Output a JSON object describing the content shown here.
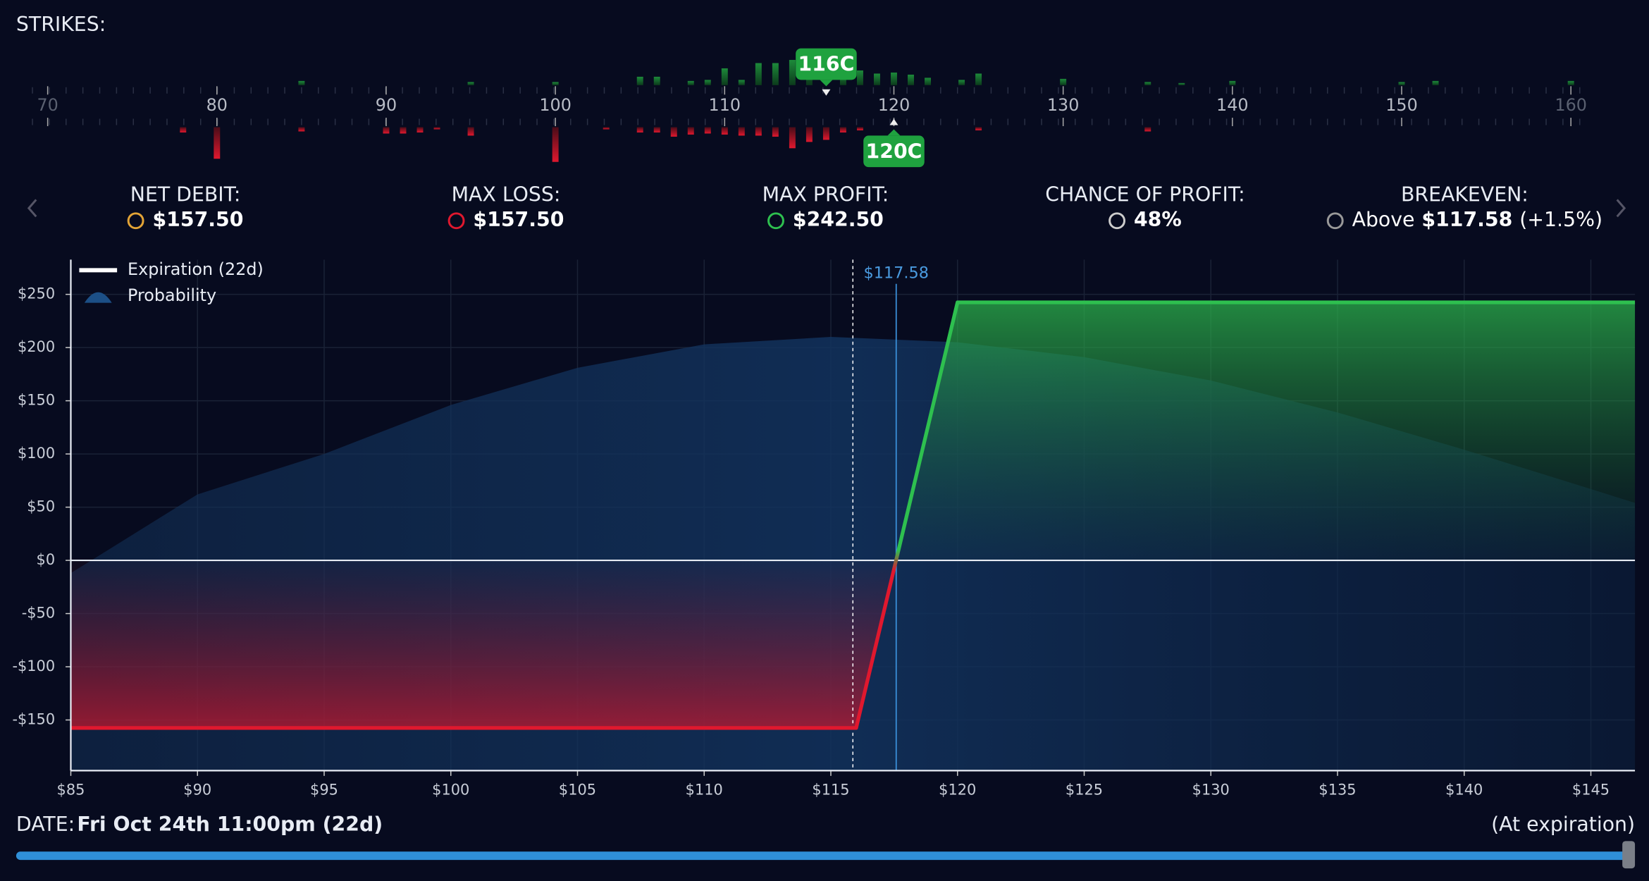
{
  "strikes_label": "STRIKES:",
  "strike_axis": {
    "xlim": [
      69.07,
      161.3
    ],
    "ticks": [
      70,
      80,
      90,
      100,
      110,
      120,
      130,
      140,
      150,
      160
    ],
    "call_strikes": [
      85,
      95,
      100,
      105,
      106,
      108,
      109,
      110,
      111,
      112,
      113,
      114,
      115,
      117,
      118,
      119,
      120,
      121,
      122,
      124,
      125,
      130,
      135,
      137,
      140,
      150,
      152,
      160
    ],
    "call_volume": [
      4,
      3,
      3,
      8,
      8,
      4,
      5,
      16,
      5,
      21,
      21,
      24,
      30,
      12,
      14,
      11,
      12,
      10,
      7,
      5,
      11,
      6,
      3,
      2,
      4,
      3,
      4,
      4
    ],
    "put_strikes": [
      78,
      80,
      85,
      90,
      91,
      92,
      93,
      95,
      100,
      103,
      105,
      106,
      107,
      108,
      109,
      110,
      111,
      112,
      113,
      114,
      115,
      116,
      117,
      118,
      125,
      135
    ],
    "put_volume": [
      5,
      30,
      4,
      6,
      6,
      5,
      2,
      8,
      33,
      2,
      5,
      5,
      9,
      7,
      6,
      7,
      8,
      8,
      9,
      20,
      14,
      12,
      5,
      3,
      3,
      4
    ],
    "tags": [
      {
        "label": "116C",
        "strike": 116,
        "side": "top"
      },
      {
        "label": "120C",
        "strike": 120,
        "side": "bottom"
      }
    ]
  },
  "metrics": [
    {
      "label": "NET DEBIT:",
      "value": "$157.50"
    },
    {
      "label": "MAX LOSS:",
      "value": "$157.50"
    },
    {
      "label": "MAX PROFIT:",
      "value": "$242.50"
    },
    {
      "label": "CHANCE OF PROFIT:",
      "value": "48%"
    },
    {
      "label": "BREAKEVEN:",
      "prefix": "Above",
      "value": "$117.58",
      "suffix": "(+1.5%)"
    }
  ],
  "chart_data": {
    "type": "line",
    "xlim": [
      85,
      146.74
    ],
    "ylim": [
      -197.6,
      282.6
    ],
    "xticks": [
      {
        "value": 85,
        "label": "$85"
      },
      {
        "value": 90,
        "label": "$90"
      },
      {
        "value": 95,
        "label": "$95"
      },
      {
        "value": 100,
        "label": "$100"
      },
      {
        "value": 105,
        "label": "$105"
      },
      {
        "value": 110,
        "label": "$110"
      },
      {
        "value": 115,
        "label": "$115"
      },
      {
        "value": 120,
        "label": "$120"
      },
      {
        "value": 125,
        "label": "$125"
      },
      {
        "value": 130,
        "label": "$130"
      },
      {
        "value": 135,
        "label": "$135"
      },
      {
        "value": 140,
        "label": "$140"
      },
      {
        "value": 145,
        "label": "$145"
      }
    ],
    "yticks": [
      {
        "value": 250,
        "label": "$250"
      },
      {
        "value": 200,
        "label": "$200"
      },
      {
        "value": 150,
        "label": "$150"
      },
      {
        "value": 100,
        "label": "$100"
      },
      {
        "value": 50,
        "label": "$50"
      },
      {
        "value": 0,
        "label": "$0"
      },
      {
        "value": -50,
        "label": "-$50"
      },
      {
        "value": -100,
        "label": "-$100"
      },
      {
        "value": -150,
        "label": "-$150"
      }
    ],
    "grid": true,
    "series": [
      {
        "name": "Expiration (22d)",
        "color": "#ffffff",
        "x": [
          85,
          116,
          120,
          146.74
        ],
        "values": [
          -157.5,
          -157.5,
          242.5,
          242.5
        ]
      },
      {
        "name": "Probability",
        "color": "#1c4f86",
        "x": [
          85,
          90,
          95,
          100,
          105,
          110,
          115,
          120,
          125,
          130,
          135,
          140,
          145,
          146.74
        ],
        "values": [
          -12,
          62,
          100,
          146,
          181,
          203,
          210,
          205,
          191,
          169,
          139,
          104,
          67,
          54
        ]
      }
    ],
    "current_price": {
      "value": 117.58,
      "label": "$117.58"
    },
    "marker_line": 115.87
  },
  "date": {
    "label": "DATE:",
    "value": "Fri Oct 24th 11:00pm (22d)",
    "note": "(At expiration)"
  }
}
